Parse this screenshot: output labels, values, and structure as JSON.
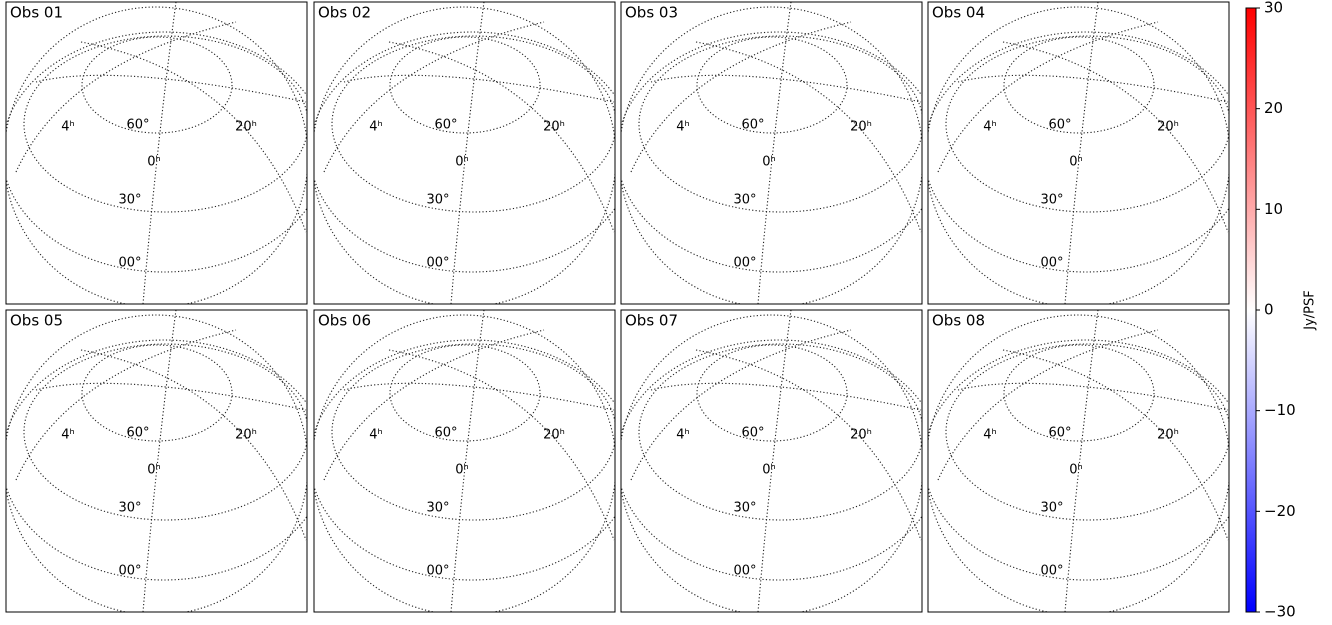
{
  "chart_data": {
    "type": "image-grid",
    "panels": [
      {
        "title": "Obs 01"
      },
      {
        "title": "Obs 02"
      },
      {
        "title": "Obs 03"
      },
      {
        "title": "Obs 04"
      },
      {
        "title": "Obs 05"
      },
      {
        "title": "Obs 06"
      },
      {
        "title": "Obs 07"
      },
      {
        "title": "Obs 08"
      }
    ],
    "grid_labels": {
      "ra": [
        "4ʰ",
        "0ʰ",
        "20ʰ"
      ],
      "dec": [
        "60°",
        "30°",
        "00°"
      ]
    },
    "colorbar": {
      "label": "Jy/PSF",
      "clim": [
        -30,
        30
      ],
      "ticks": [
        {
          "value": -30,
          "label": "−30"
        },
        {
          "value": -20,
          "label": "−20"
        },
        {
          "value": -10,
          "label": "−10"
        },
        0,
        10,
        20,
        30
      ],
      "colormap": [
        "#0000ff",
        "#ffffff",
        "#ff0000"
      ]
    }
  }
}
